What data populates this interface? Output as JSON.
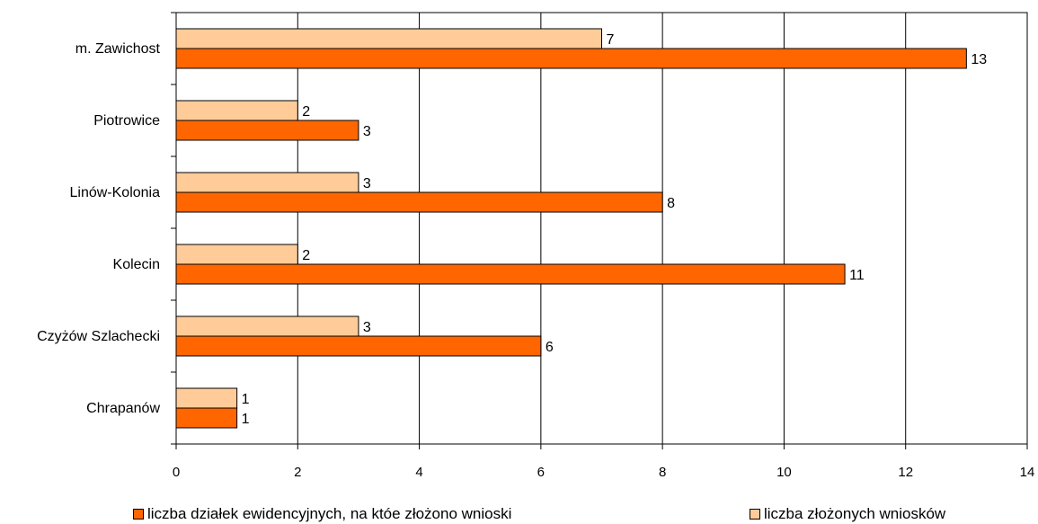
{
  "chart_data": {
    "type": "bar",
    "orientation": "horizontal",
    "categories": [
      "m. Zawichost",
      "Piotrowice",
      "Linów-Kolonia",
      "Kolecin",
      "Czyżów Szlachecki",
      "Chrapanów"
    ],
    "series": [
      {
        "name": "liczba złożonych wniosków",
        "values": [
          7,
          2,
          3,
          2,
          3,
          1
        ],
        "color": "#FFCC99"
      },
      {
        "name": "liczba działek ewidencyjnych, na któe złożono wnioski",
        "values": [
          13,
          3,
          8,
          11,
          6,
          1
        ],
        "color": "#FF6600"
      }
    ],
    "xlim": [
      0,
      14
    ],
    "xticks": [
      0,
      2,
      4,
      6,
      8,
      10,
      12,
      14
    ],
    "xlabel": "",
    "ylabel": "",
    "title": "",
    "grid": "vertical",
    "legend_position": "bottom",
    "data_labels": true
  },
  "legend": {
    "item1_label": "liczba działek ewidencyjnych, na któe złożono wnioski",
    "item2_label": "liczba złożonych wniosków"
  }
}
